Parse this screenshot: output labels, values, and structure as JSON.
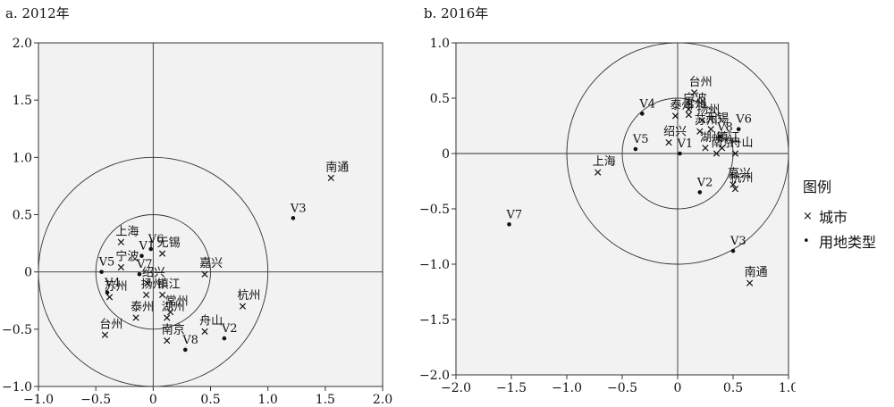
{
  "chart_data": [
    {
      "type": "scatter",
      "title": "a. 2012年",
      "xlim": [
        -1.0,
        2.0
      ],
      "ylim": [
        -1.0,
        2.0
      ],
      "x_ticks": [
        "−1.0",
        "−0.5",
        "0",
        "0.5",
        "1.0",
        "1.5",
        "2.0"
      ],
      "y_ticks": [
        "−1.0",
        "−0.5",
        "0",
        "0.5",
        "1.0",
        "1.5",
        "2.0"
      ],
      "x_tick_values": [
        -1.0,
        -0.5,
        0,
        0.5,
        1.0,
        1.5,
        2.0
      ],
      "y_tick_values": [
        -1.0,
        -0.5,
        0,
        0.5,
        1.0,
        1.5,
        2.0
      ],
      "circles": [
        1.0,
        0.5
      ],
      "cities": [
        {
          "label": "南通",
          "x": 1.55,
          "y": 0.82
        },
        {
          "label": "上海",
          "x": -0.28,
          "y": 0.26
        },
        {
          "label": "无锡",
          "x": 0.08,
          "y": 0.16
        },
        {
          "label": "宁波",
          "x": -0.28,
          "y": 0.04
        },
        {
          "label": "嘉兴",
          "x": 0.45,
          "y": -0.02
        },
        {
          "label": "绍兴",
          "x": -0.05,
          "y": -0.1
        },
        {
          "label": "镇江",
          "x": 0.08,
          "y": -0.2
        },
        {
          "label": "苏州",
          "x": -0.38,
          "y": -0.22
        },
        {
          "label": "扬州",
          "x": -0.06,
          "y": -0.2
        },
        {
          "label": "常州",
          "x": 0.15,
          "y": -0.35
        },
        {
          "label": "杭州",
          "x": 0.78,
          "y": -0.3
        },
        {
          "label": "台州",
          "x": -0.42,
          "y": -0.55
        },
        {
          "label": "泰州",
          "x": -0.15,
          "y": -0.4
        },
        {
          "label": "湖州",
          "x": 0.12,
          "y": -0.4
        },
        {
          "label": "舟山",
          "x": 0.45,
          "y": -0.52
        },
        {
          "label": "南京",
          "x": 0.12,
          "y": -0.6
        }
      ],
      "land_types": [
        {
          "label": "V1",
          "x": -0.1,
          "y": 0.14
        },
        {
          "label": "V2",
          "x": 0.62,
          "y": -0.58
        },
        {
          "label": "V3",
          "x": 1.22,
          "y": 0.47
        },
        {
          "label": "V4",
          "x": -0.4,
          "y": -0.18
        },
        {
          "label": "V5",
          "x": -0.45,
          "y": 0.0
        },
        {
          "label": "V6",
          "x": -0.02,
          "y": 0.2
        },
        {
          "label": "V7",
          "x": -0.12,
          "y": -0.02
        },
        {
          "label": "V8",
          "x": 0.28,
          "y": -0.68
        }
      ]
    },
    {
      "type": "scatter",
      "title": "b. 2016年",
      "xlim": [
        -2.0,
        1.0
      ],
      "ylim": [
        -2.0,
        1.0
      ],
      "x_ticks": [
        "−2.0",
        "−1.5",
        "−1.0",
        "−0.5",
        "0",
        "0.5",
        "1.0"
      ],
      "y_ticks": [
        "−2.0",
        "−1.5",
        "−1.0",
        "−0.5",
        "0",
        "0.5",
        "1.0"
      ],
      "x_tick_values": [
        -2.0,
        -1.5,
        -1.0,
        -0.5,
        0,
        0.5,
        1.0
      ],
      "y_tick_values": [
        -2.0,
        -1.5,
        -1.0,
        -0.5,
        0,
        0.5,
        1.0
      ],
      "circles": [
        1.0,
        0.5
      ],
      "cities": [
        {
          "label": "宁波",
          "x": 0.1,
          "y": 0.4
        },
        {
          "label": "台州",
          "x": 0.15,
          "y": 0.55
        },
        {
          "label": "常州",
          "x": 0.1,
          "y": 0.35
        },
        {
          "label": "扬州",
          "x": 0.22,
          "y": 0.3
        },
        {
          "label": "泰州",
          "x": -0.02,
          "y": 0.34
        },
        {
          "label": "无锡",
          "x": 0.3,
          "y": 0.22
        },
        {
          "label": "苏州",
          "x": 0.2,
          "y": 0.2
        },
        {
          "label": "绍兴",
          "x": -0.08,
          "y": 0.1
        },
        {
          "label": "湖州",
          "x": 0.25,
          "y": 0.05
        },
        {
          "label": "舟山",
          "x": 0.52,
          "y": 0.0
        },
        {
          "label": "镇江",
          "x": 0.4,
          "y": 0.05
        },
        {
          "label": "南京",
          "x": 0.35,
          "y": 0.0
        },
        {
          "label": "嘉兴",
          "x": 0.5,
          "y": -0.28
        },
        {
          "label": "杭州",
          "x": 0.52,
          "y": -0.32
        },
        {
          "label": "上海",
          "x": -0.72,
          "y": -0.17
        },
        {
          "label": "南通",
          "x": 0.65,
          "y": -1.17
        }
      ],
      "land_types": [
        {
          "label": "V1",
          "x": 0.02,
          "y": 0.0
        },
        {
          "label": "V2",
          "x": 0.2,
          "y": -0.35
        },
        {
          "label": "V3",
          "x": 0.5,
          "y": -0.88
        },
        {
          "label": "V4",
          "x": -0.32,
          "y": 0.36
        },
        {
          "label": "V5",
          "x": -0.38,
          "y": 0.04
        },
        {
          "label": "V6",
          "x": 0.55,
          "y": 0.22
        },
        {
          "label": "V7",
          "x": -1.52,
          "y": -0.64
        },
        {
          "label": "V8",
          "x": 0.38,
          "y": 0.15
        }
      ]
    }
  ],
  "legend": {
    "title": "图例",
    "city_label": "城市",
    "land_type_label": "用地类型",
    "city_symbol": "×",
    "land_type_symbol": "•"
  }
}
